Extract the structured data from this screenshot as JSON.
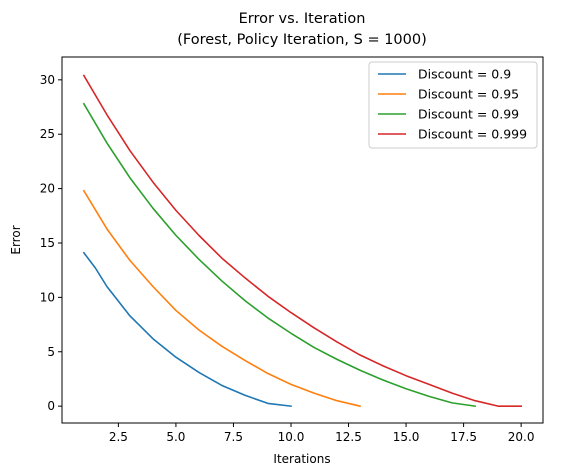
{
  "chart_data": {
    "type": "line",
    "title_lines": [
      "Error vs. Iteration",
      "(Forest, Policy Iteration, S = 1000)"
    ],
    "xlabel": "Iterations",
    "ylabel": "Error",
    "xlim": [
      0.05,
      20.95
    ],
    "ylim": [
      -1.55,
      32.1
    ],
    "xticks": [
      2.5,
      5.0,
      7.5,
      10.0,
      12.5,
      15.0,
      17.5,
      20.0
    ],
    "xtick_labels": [
      "2.5",
      "5.0",
      "7.5",
      "10.0",
      "12.5",
      "15.0",
      "17.5",
      "20.0"
    ],
    "yticks": [
      0,
      5,
      10,
      15,
      20,
      25,
      30
    ],
    "ytick_labels": [
      "0",
      "5",
      "10",
      "15",
      "20",
      "25",
      "30"
    ],
    "grid": false,
    "legend_position": "top-right",
    "series": [
      {
        "name": "Discount = 0.9",
        "color": "#1f77b4",
        "x": [
          1,
          1.5,
          2,
          3,
          4,
          5,
          6,
          7,
          8,
          9,
          10
        ],
        "y": [
          14.1,
          12.7,
          11.0,
          8.3,
          6.2,
          4.5,
          3.1,
          1.9,
          1.0,
          0.25,
          0.0
        ]
      },
      {
        "name": "Discount = 0.95",
        "color": "#ff7f0e",
        "x": [
          1,
          2,
          3,
          4,
          5,
          6,
          7,
          8,
          9,
          10,
          11,
          12,
          13
        ],
        "y": [
          19.8,
          16.3,
          13.4,
          11.0,
          8.8,
          7.0,
          5.5,
          4.2,
          3.0,
          2.0,
          1.2,
          0.5,
          0.0
        ]
      },
      {
        "name": "Discount = 0.99",
        "color": "#2ca02c",
        "x": [
          1,
          2,
          3,
          4,
          5,
          6,
          7,
          8,
          9,
          10,
          11,
          12,
          13,
          14,
          15,
          16,
          17,
          18
        ],
        "y": [
          27.8,
          24.2,
          21.0,
          18.2,
          15.7,
          13.5,
          11.5,
          9.7,
          8.1,
          6.7,
          5.4,
          4.3,
          3.3,
          2.4,
          1.6,
          0.9,
          0.3,
          0.0
        ]
      },
      {
        "name": "Discount = 0.999",
        "color": "#d62728",
        "x": [
          1,
          2,
          3,
          4,
          5,
          6,
          7,
          8,
          9,
          10,
          11,
          12,
          13,
          14,
          15,
          16,
          17,
          18,
          19,
          20
        ],
        "y": [
          30.4,
          26.8,
          23.5,
          20.6,
          18.0,
          15.7,
          13.6,
          11.8,
          10.1,
          8.6,
          7.2,
          5.9,
          4.7,
          3.7,
          2.8,
          2.0,
          1.2,
          0.5,
          0.0,
          0.0
        ]
      }
    ]
  }
}
